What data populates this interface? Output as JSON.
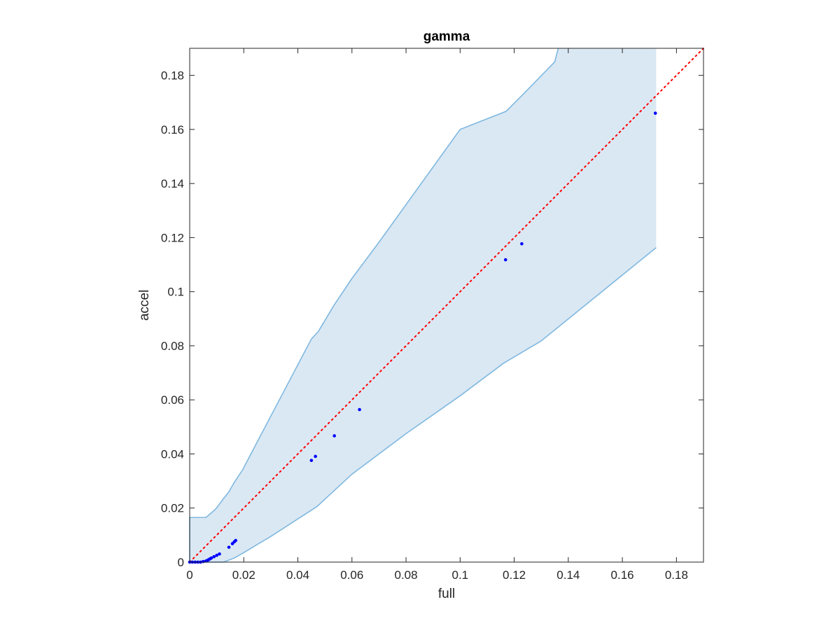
{
  "chart_data": {
    "type": "scatter",
    "title": "gamma",
    "xlabel": "full",
    "ylabel": "accel",
    "xlim": [
      0,
      0.19
    ],
    "ylim": [
      0,
      0.19
    ],
    "grid": false,
    "xticks": [
      0,
      0.02,
      0.04,
      0.06,
      0.08,
      0.1,
      0.12,
      0.14,
      0.16,
      0.18
    ],
    "yticks": [
      0,
      0.02,
      0.04,
      0.06,
      0.08,
      0.1,
      0.12,
      0.14,
      0.16,
      0.18
    ],
    "xtick_labels": [
      "0",
      "0.02",
      "0.04",
      "0.06",
      "0.08",
      "0.1",
      "0.12",
      "0.14",
      "0.16",
      "0.18"
    ],
    "ytick_labels": [
      "0",
      "0.02",
      "0.04",
      "0.06",
      "0.08",
      "0.1",
      "0.12",
      "0.14",
      "0.16",
      "0.18"
    ],
    "points": {
      "x": [
        0,
        0.001,
        0.002,
        0.003,
        0.004,
        0.005,
        0.006,
        0.0065,
        0.007,
        0.0075,
        0.008,
        0.009,
        0.01,
        0.011,
        0.0145,
        0.0158,
        0.0165,
        0.017,
        0.045,
        0.0465,
        0.0535,
        0.0628,
        0.1168,
        0.1228,
        0.1722
      ],
      "y": [
        0,
        0,
        0,
        0,
        0,
        0.0002,
        0.0004,
        0.0006,
        0.0009,
        0.0012,
        0.0015,
        0.002,
        0.0025,
        0.003,
        0.0055,
        0.0068,
        0.0075,
        0.008,
        0.0376,
        0.0391,
        0.0467,
        0.0564,
        0.1118,
        0.1177,
        0.166
      ],
      "color": "#0000ff"
    },
    "reference_line": {
      "x": [
        0,
        0.19
      ],
      "y": [
        0,
        0.19
      ],
      "style": "dotted",
      "color": "#ff0000"
    },
    "band": {
      "fill_color": "#dae8f4",
      "edge_color": "#7fb8df",
      "upper": {
        "x": [
          0,
          0.006,
          0.0095,
          0.0125,
          0.0145,
          0.0165,
          0.0195,
          0.025,
          0.035,
          0.045,
          0.0475,
          0.0535,
          0.06,
          0.07,
          0.08,
          0.1,
          0.117,
          0.1235,
          0.135,
          0.1363
        ],
        "y": [
          0.0165,
          0.0165,
          0.0195,
          0.0235,
          0.026,
          0.0295,
          0.034,
          0.0445,
          0.0635,
          0.0825,
          0.0852,
          0.0952,
          0.1049,
          0.1183,
          0.1322,
          0.16,
          0.1667,
          0.1732,
          0.185,
          0.19
        ]
      },
      "right_edge": {
        "x": 0.1725,
        "y_top": 0.19,
        "y_bottom": 0.1163
      },
      "lower": {
        "x": [
          0,
          0.0125,
          0.0165,
          0.02,
          0.03,
          0.047,
          0.06,
          0.08,
          0.1,
          0.116,
          0.13,
          0.1725
        ],
        "y": [
          0,
          0,
          0.0015,
          0.0035,
          0.0095,
          0.0205,
          0.0325,
          0.0475,
          0.0615,
          0.0735,
          0.0818,
          0.1163
        ]
      }
    }
  }
}
